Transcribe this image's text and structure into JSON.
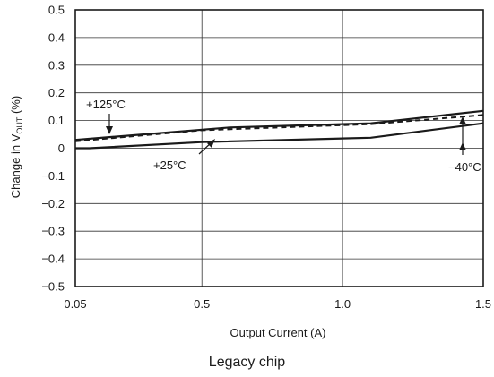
{
  "caption": "Legacy chip",
  "chart_data": {
    "type": "line",
    "xlabel": "Output Current (A)",
    "ylabel": {
      "prefix": "Change in V",
      "sub": "OUT",
      "suffix": " (%)"
    },
    "xlim": [
      0.05,
      1.5
    ],
    "ylim": [
      -0.5,
      0.5
    ],
    "x_ticks": [
      0.05,
      0.5,
      1.0,
      1.5
    ],
    "x_tick_labels": [
      "0.05",
      "0.5",
      "1.0",
      "1.5"
    ],
    "y_ticks": [
      0.5,
      0.4,
      0.3,
      0.2,
      0.1,
      0,
      -0.1,
      -0.2,
      -0.3,
      -0.4,
      -0.5
    ],
    "y_tick_labels": [
      "0.5",
      "0.4",
      "0.3",
      "0.2",
      "0.1",
      "0",
      "−0.1",
      "−0.2",
      "−0.3",
      "−0.4",
      "−0.5"
    ],
    "grid": true,
    "series": [
      {
        "name": "+125°C",
        "style": "solid",
        "x": [
          0.05,
          0.6,
          1.1,
          1.5
        ],
        "y": [
          0.03,
          0.075,
          0.09,
          0.135
        ]
      },
      {
        "name": "+25°C",
        "style": "solid",
        "x": [
          0.05,
          0.1,
          0.5,
          1.1,
          1.5
        ],
        "y": [
          0.0,
          0.0,
          0.022,
          0.038,
          0.09
        ]
      },
      {
        "name": "−40°C",
        "style": "dashed",
        "x": [
          0.05,
          0.5,
          1.1,
          1.5
        ],
        "y": [
          0.025,
          0.065,
          0.087,
          0.12
        ]
      }
    ]
  }
}
